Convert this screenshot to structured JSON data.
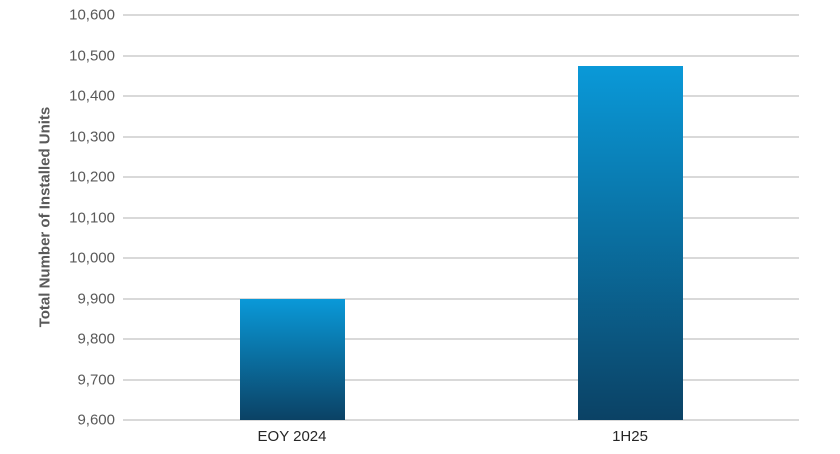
{
  "chart_data": {
    "type": "bar",
    "title": "",
    "xlabel": "",
    "ylabel": "Total Number of Installed Units",
    "categories": [
      "EOY 2024",
      "1H25"
    ],
    "values": [
      9900,
      10475
    ],
    "ylim": [
      9600,
      10600
    ],
    "ytick_step": 100,
    "y_tick_labels": [
      "10,600",
      "10,500",
      "10,400",
      "10,300",
      "10,200",
      "10,100",
      "10,000",
      "9,900",
      "9,800",
      "9,700",
      "9,600"
    ],
    "grid": true,
    "legend": false,
    "colors": {
      "bar_gradient_top": "#0a99d8",
      "bar_gradient_bottom": "#0b4265",
      "gridline": "#d9d9d9",
      "y_tick_text": "#595959",
      "x_tick_text": "#262626",
      "axis_title_text": "#595959",
      "background": "#ffffff"
    }
  }
}
